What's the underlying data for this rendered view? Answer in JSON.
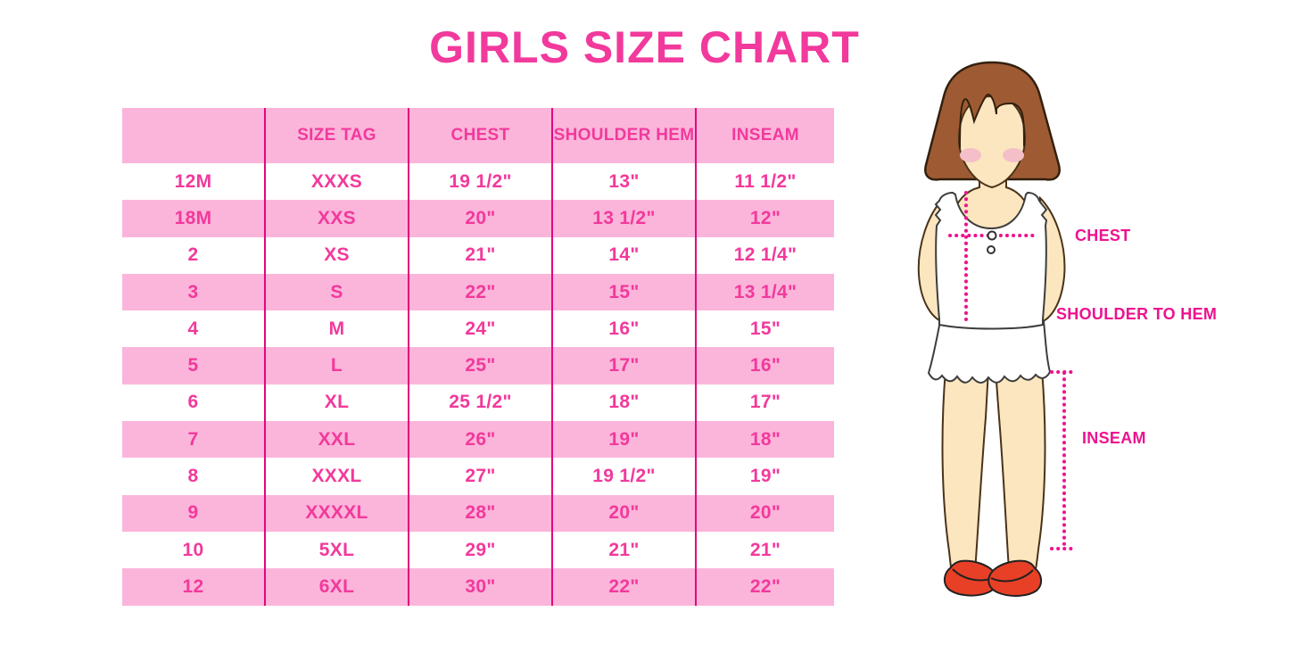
{
  "title": "GIRLS SIZE CHART",
  "colors": {
    "accent_pink": "#F2399C",
    "row_pink": "#FBB5DA",
    "divider_magenta": "#E2067F",
    "measure_magenta": "#ED128F",
    "hair_brown": "#9E5B33",
    "hair_outline": "#33200E",
    "skin": "#FBE6C0",
    "skin_outline": "#4A3319",
    "blush_pink": "#F5BFC9",
    "garment_white": "#FFFFFF",
    "garment_outline": "#3D3D3D",
    "shoe_red": "#E84026"
  },
  "chart_data": {
    "type": "table",
    "title": "GIRLS SIZE CHART",
    "columns": [
      "",
      "SIZE TAG",
      "CHEST",
      "SHOULDER HEM",
      "INSEAM"
    ],
    "rows": [
      [
        "12M",
        "XXXS",
        "19 1/2\"",
        "13\"",
        "11 1/2\""
      ],
      [
        "18M",
        "XXS",
        "20\"",
        "13 1/2\"",
        "12\""
      ],
      [
        "2",
        "XS",
        "21\"",
        "14\"",
        "12 1/4\""
      ],
      [
        "3",
        "S",
        "22\"",
        "15\"",
        "13 1/4\""
      ],
      [
        "4",
        "M",
        "24\"",
        "16\"",
        "15\""
      ],
      [
        "5",
        "L",
        "25\"",
        "17\"",
        "16\""
      ],
      [
        "6",
        "XL",
        "25 1/2\"",
        "18\"",
        "17\""
      ],
      [
        "7",
        "XXL",
        "26\"",
        "19\"",
        "18\""
      ],
      [
        "8",
        "XXXL",
        "27\"",
        "19 1/2\"",
        "19\""
      ],
      [
        "9",
        "XXXXL",
        "28\"",
        "20\"",
        "20\""
      ],
      [
        "10",
        "5XL",
        "29\"",
        "21\"",
        "21\""
      ],
      [
        "12",
        "6XL",
        "30\"",
        "22\"",
        "22\""
      ]
    ]
  },
  "diagram": {
    "labels": {
      "chest": "CHEST",
      "shoulder_to_hem": "SHOULDER TO HEM",
      "inseam": "INSEAM"
    }
  }
}
